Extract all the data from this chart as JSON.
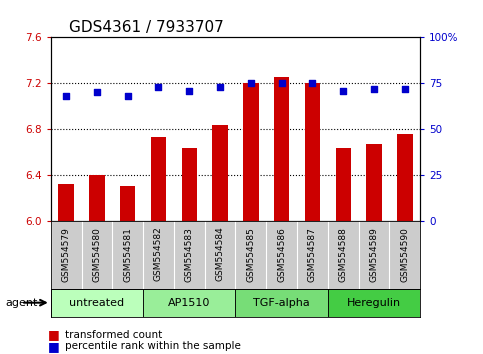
{
  "title": "GDS4361 / 7933707",
  "samples": [
    "GSM554579",
    "GSM554580",
    "GSM554581",
    "GSM554582",
    "GSM554583",
    "GSM554584",
    "GSM554585",
    "GSM554586",
    "GSM554587",
    "GSM554588",
    "GSM554589",
    "GSM554590"
  ],
  "bar_values": [
    6.32,
    6.4,
    6.31,
    6.73,
    6.64,
    6.84,
    7.2,
    7.25,
    7.2,
    6.64,
    6.67,
    6.76
  ],
  "dot_values": [
    68,
    70,
    68,
    73,
    71,
    73,
    75,
    75,
    75,
    71,
    72,
    72
  ],
  "bar_color": "#cc0000",
  "dot_color": "#0000cc",
  "ylim_left": [
    6.0,
    7.6
  ],
  "ylim_right": [
    0,
    100
  ],
  "yticks_left": [
    6.0,
    6.4,
    6.8,
    7.2,
    7.6
  ],
  "yticks_right": [
    0,
    25,
    50,
    75,
    100
  ],
  "ytick_labels_right": [
    "0",
    "25",
    "50",
    "75",
    "100%"
  ],
  "groups": [
    {
      "label": "untreated",
      "start": 0,
      "end": 3,
      "color": "#bbffbb"
    },
    {
      "label": "AP1510",
      "start": 3,
      "end": 6,
      "color": "#99ee99"
    },
    {
      "label": "TGF-alpha",
      "start": 6,
      "end": 9,
      "color": "#77dd77"
    },
    {
      "label": "Heregulin",
      "start": 9,
      "end": 12,
      "color": "#44cc44"
    }
  ],
  "legend_bar_label": "transformed count",
  "legend_dot_label": "percentile rank within the sample",
  "agent_label": "agent",
  "bar_width": 0.5,
  "baseline": 6.0,
  "hline_values": [
    6.4,
    6.8,
    7.2
  ],
  "title_fontsize": 11,
  "tick_fontsize": 7.5,
  "sample_fontsize": 6.5,
  "group_fontsize": 8,
  "legend_fontsize": 7.5,
  "xlabel_bg": "#cccccc"
}
